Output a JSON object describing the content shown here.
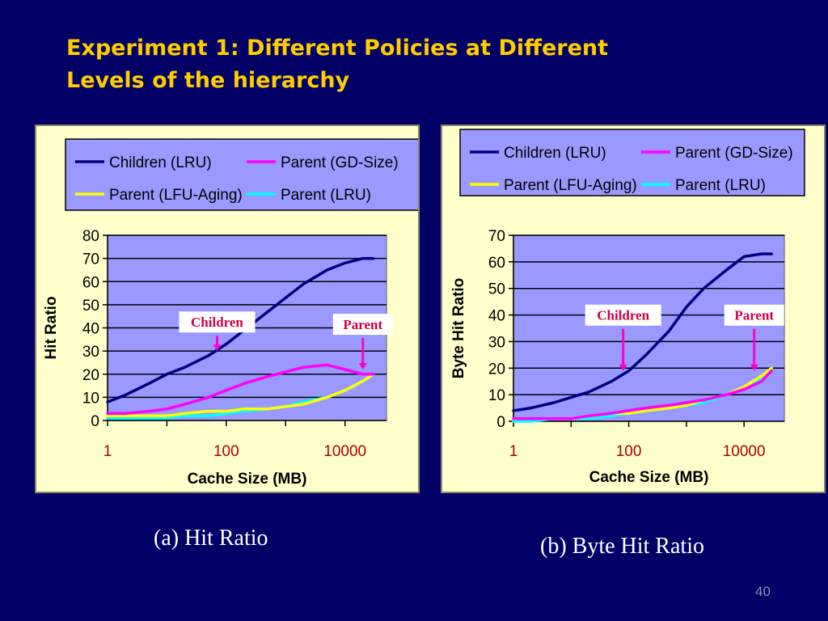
{
  "slide": {
    "title_line1": "Experiment 1: Different Policies at Different",
    "title_line2": "Levels of the hierarchy",
    "caption_a": "(a) Hit Ratio",
    "caption_b": "(b) Byte Hit Ratio",
    "page_number": "40"
  },
  "colors": {
    "slide_background": "#000066",
    "title": "#FFCC00",
    "panel_background": "#FFFFCC",
    "plot_background": "#9999FF",
    "x_tick_labels": "#B00000",
    "callout_arrow": "#FF00CC",
    "callout_text": "#CC0044"
  },
  "chart_data": [
    {
      "id": "hit-ratio",
      "type": "line",
      "xlabel": "Cache Size (MB)",
      "ylabel": "Hit Ratio",
      "x_scale": "log",
      "xlim": [
        1,
        50000
      ],
      "xticks": [
        1,
        100,
        10000
      ],
      "xtick_labels": [
        "1",
        "100",
        "10000"
      ],
      "ylim": [
        0,
        80
      ],
      "yticks": [
        0,
        10,
        20,
        30,
        40,
        50,
        60,
        70,
        80
      ],
      "grid": "horizontal",
      "legend_position": "top",
      "series": [
        {
          "name": "Children (LRU)",
          "color": "#000080",
          "x": [
            1,
            2,
            5,
            10,
            20,
            50,
            100,
            200,
            500,
            1000,
            2000,
            5000,
            10000,
            20000,
            30000
          ],
          "y": [
            8,
            11,
            16,
            20,
            23,
            28,
            33,
            39,
            47,
            53,
            59,
            65,
            68,
            70,
            70
          ]
        },
        {
          "name": "Parent (GD-Size)",
          "color": "#FF00FF",
          "x": [
            1,
            2,
            5,
            10,
            20,
            50,
            100,
            200,
            500,
            1000,
            2000,
            5000,
            10000,
            20000,
            30000
          ],
          "y": [
            3,
            3,
            4,
            5,
            7,
            10,
            13,
            16,
            19,
            21,
            23,
            24,
            22,
            20,
            20
          ]
        },
        {
          "name": "Parent (LFU-Aging)",
          "color": "#FFFF00",
          "x": [
            1,
            2,
            5,
            10,
            20,
            50,
            100,
            200,
            500,
            1000,
            2000,
            5000,
            10000,
            20000,
            30000
          ],
          "y": [
            2,
            2,
            2,
            2,
            3,
            4,
            4,
            5,
            5,
            6,
            7,
            10,
            13,
            17,
            20
          ]
        },
        {
          "name": "Parent (LRU)",
          "color": "#00FFFF",
          "x": [
            1,
            2,
            5,
            10,
            20,
            50,
            100,
            200,
            500,
            1000,
            2000,
            5000,
            10000,
            20000,
            30000
          ],
          "y": [
            1,
            1,
            1,
            1,
            2,
            2,
            3,
            4,
            5,
            6,
            8,
            10,
            13,
            17,
            20
          ]
        }
      ],
      "annotations": [
        {
          "text": "Children",
          "x": 70,
          "y": 38,
          "arrow_to_y": 30
        },
        {
          "text": "Parent",
          "x": 20000,
          "y": 37,
          "arrow_to_y": 22
        }
      ]
    },
    {
      "id": "byte-hit-ratio",
      "type": "line",
      "xlabel": "Cache Size (MB)",
      "ylabel": "Byte Hit Ratio",
      "x_scale": "log",
      "xlim": [
        1,
        50000
      ],
      "xticks": [
        1,
        100,
        10000
      ],
      "xtick_labels": [
        "1",
        "100",
        "10000"
      ],
      "ylim": [
        0,
        70
      ],
      "yticks": [
        0,
        10,
        20,
        30,
        40,
        50,
        60,
        70
      ],
      "grid": "horizontal",
      "legend_position": "top",
      "series": [
        {
          "name": "Children (LRU)",
          "color": "#000080",
          "x": [
            1,
            2,
            5,
            10,
            20,
            50,
            100,
            200,
            500,
            1000,
            2000,
            5000,
            10000,
            20000,
            30000
          ],
          "y": [
            4,
            5,
            7,
            9,
            11,
            15,
            19,
            25,
            34,
            43,
            50,
            57,
            62,
            63,
            63
          ]
        },
        {
          "name": "Parent (GD-Size)",
          "color": "#FF00FF",
          "x": [
            1,
            2,
            5,
            10,
            20,
            50,
            100,
            200,
            500,
            1000,
            2000,
            5000,
            10000,
            20000,
            30000
          ],
          "y": [
            1,
            1,
            1,
            1,
            2,
            3,
            4,
            5,
            6,
            7,
            8,
            10,
            12,
            15,
            19
          ]
        },
        {
          "name": "Parent (LFU-Aging)",
          "color": "#FFFF00",
          "x": [
            1,
            2,
            5,
            10,
            20,
            50,
            100,
            200,
            500,
            1000,
            2000,
            5000,
            10000,
            20000,
            30000
          ],
          "y": [
            1,
            1,
            1,
            1,
            2,
            3,
            3,
            4,
            5,
            6,
            8,
            10,
            13,
            17,
            20
          ]
        },
        {
          "name": "Parent (LRU)",
          "color": "#00FFFF",
          "x": [
            1,
            2,
            5,
            10,
            20,
            50,
            100,
            200,
            500,
            1000,
            2000,
            5000,
            10000,
            20000,
            30000
          ],
          "y": [
            0,
            0,
            1,
            1,
            1,
            2,
            3,
            4,
            5,
            6,
            7,
            10,
            13,
            16,
            20
          ]
        }
      ],
      "annotations": [
        {
          "text": "Children",
          "x": 80,
          "y": 36,
          "arrow_to_y": 19
        },
        {
          "text": "Parent",
          "x": 15000,
          "y": 36,
          "arrow_to_y": 19
        }
      ]
    }
  ]
}
